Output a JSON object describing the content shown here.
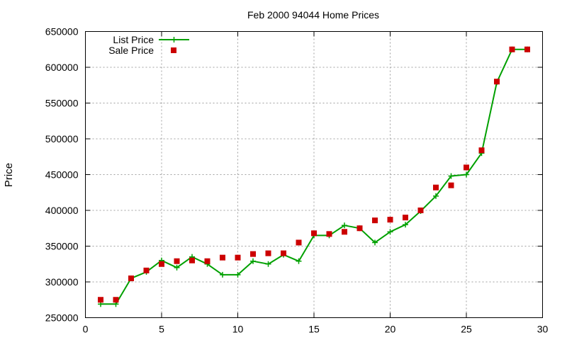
{
  "chart_data": {
    "type": "line",
    "title": "Feb 2000 94044 Home Prices",
    "xlabel": "",
    "ylabel": "Price",
    "xlim": [
      0,
      30
    ],
    "ylim": [
      250000,
      650000
    ],
    "xticks": [
      0,
      5,
      10,
      15,
      20,
      25,
      30
    ],
    "yticks": [
      250000,
      300000,
      350000,
      400000,
      450000,
      500000,
      550000,
      600000,
      650000
    ],
    "grid": true,
    "legend_position": "top-left",
    "series": [
      {
        "name": "List Price",
        "style": "line-with-plus-markers",
        "color": "#00a000",
        "x": [
          1,
          2,
          3,
          4,
          5,
          6,
          7,
          8,
          9,
          10,
          11,
          12,
          13,
          14,
          15,
          16,
          17,
          18,
          19,
          20,
          21,
          22,
          23,
          24,
          25,
          26,
          27,
          28,
          29
        ],
        "y": [
          269000,
          269000,
          305000,
          314000,
          330000,
          320000,
          335000,
          325000,
          310000,
          310000,
          329000,
          325000,
          338000,
          329000,
          365000,
          365000,
          379000,
          375000,
          355000,
          370000,
          380000,
          399000,
          420000,
          448000,
          450000,
          480000,
          579000,
          625000,
          625000
        ]
      },
      {
        "name": "Sale Price",
        "style": "square-markers",
        "color": "#cc0000",
        "x": [
          1,
          2,
          3,
          4,
          5,
          6,
          7,
          8,
          9,
          10,
          11,
          12,
          13,
          14,
          15,
          16,
          17,
          18,
          19,
          20,
          21,
          22,
          23,
          24,
          25,
          26,
          27,
          28,
          29
        ],
        "y": [
          275000,
          275000,
          305000,
          316000,
          325000,
          329000,
          330000,
          329000,
          334000,
          334000,
          339000,
          340000,
          340000,
          355000,
          368000,
          367000,
          370000,
          375000,
          386000,
          387000,
          390000,
          400000,
          432000,
          435000,
          460000,
          484000,
          580000,
          625000,
          625000
        ]
      }
    ]
  }
}
